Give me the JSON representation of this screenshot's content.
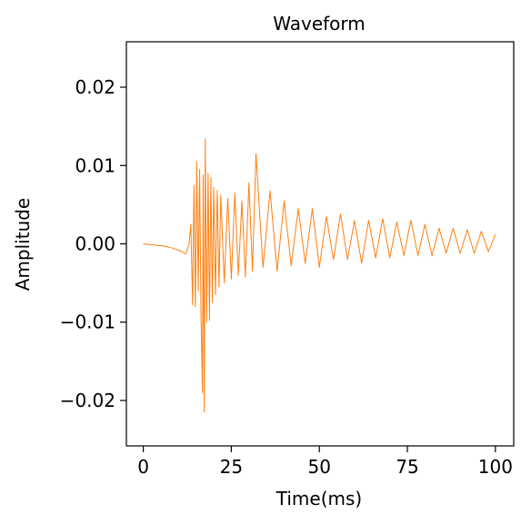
{
  "chart_data": {
    "type": "line",
    "title": "Waveform",
    "xlabel": "Time(ms)",
    "ylabel": "Amplitude",
    "xlim": [
      -4.8,
      105.2
    ],
    "ylim": [
      -0.0258,
      0.0258
    ],
    "xticks": [
      0,
      25,
      50,
      75,
      100
    ],
    "xtick_labels": [
      "0",
      "25",
      "50",
      "75",
      "100"
    ],
    "yticks": [
      -0.02,
      -0.01,
      0.0,
      0.01,
      0.02
    ],
    "ytick_labels": [
      "−0.02",
      "−0.01",
      "0.00",
      "0.01",
      "0.02"
    ],
    "grid": false,
    "legend": "none",
    "series": [
      {
        "color": "#ff7f0e",
        "x": [
          0,
          2,
          4,
          6,
          8,
          10,
          11,
          12,
          12.5,
          13,
          13.5,
          14,
          14.4,
          14.8,
          15.2,
          15.6,
          16.0,
          16.4,
          16.8,
          17.0,
          17.3,
          17.6,
          18.0,
          18.4,
          18.8,
          19.2,
          19.6,
          20.0,
          20.5,
          21.0,
          21.5,
          22.0,
          23.0,
          24.0,
          25.0,
          26.0,
          27.0,
          28.0,
          29.0,
          30.0,
          31.0,
          32.0,
          34.0,
          36.0,
          38.0,
          40.0,
          42.0,
          44.0,
          46.0,
          48.0,
          50.0,
          52.0,
          54.0,
          56.0,
          58.0,
          60.0,
          62.0,
          64.0,
          66.0,
          68.0,
          70.0,
          72.0,
          74.0,
          76.0,
          78.0,
          80.0,
          82.0,
          84.0,
          86.0,
          88.0,
          90.0,
          92.0,
          94.0,
          96.0,
          98.0,
          100.0
        ],
        "y": [
          0.0,
          -0.0001,
          -0.0002,
          -0.0003,
          -0.0005,
          -0.0008,
          -0.001,
          -0.0013,
          -0.0008,
          0.0,
          0.0025,
          -0.0078,
          0.0075,
          -0.008,
          0.0105,
          -0.006,
          0.0095,
          -0.0095,
          -0.019,
          0.0088,
          -0.0215,
          0.0134,
          -0.01,
          0.009,
          -0.0098,
          0.0085,
          -0.0075,
          0.0072,
          -0.0065,
          0.0068,
          -0.0055,
          0.0062,
          -0.005,
          0.0058,
          -0.0045,
          0.0065,
          -0.004,
          0.0055,
          -0.0042,
          0.0078,
          -0.0035,
          0.0115,
          -0.003,
          0.0068,
          -0.0035,
          0.0055,
          -0.0028,
          0.0045,
          -0.0025,
          0.0045,
          -0.003,
          0.0035,
          -0.002,
          0.0038,
          -0.002,
          0.003,
          -0.0025,
          0.003,
          -0.0018,
          0.0032,
          -0.0018,
          0.0028,
          -0.0015,
          0.003,
          -0.0015,
          0.0025,
          -0.0015,
          0.002,
          -0.0012,
          0.002,
          -0.0012,
          0.0018,
          -0.0012,
          0.0016,
          -0.001,
          0.0012
        ]
      }
    ]
  }
}
